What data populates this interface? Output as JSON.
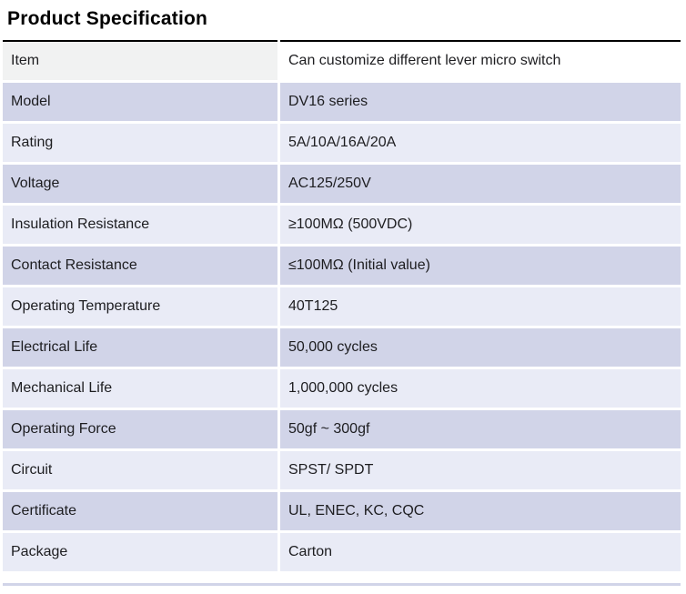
{
  "page": {
    "title": "Product Specification"
  },
  "spec_table": {
    "header_row": {
      "label": "Item",
      "value": "Can customize different lever micro switch"
    },
    "rows": [
      {
        "label": "Model",
        "value": "DV16 series"
      },
      {
        "label": "Rating",
        "value": "5A/10A/16A/20A"
      },
      {
        "label": "Voltage",
        "value": "AC125/250V"
      },
      {
        "label": "Insulation Resistance",
        "value": "≥100MΩ (500VDC)"
      },
      {
        "label": "Contact Resistance",
        "value": "≤100MΩ (Initial value)"
      },
      {
        "label": "Operating Temperature",
        "value": "40T125"
      },
      {
        "label": "Electrical Life",
        "value": "50,000 cycles"
      },
      {
        "label": "Mechanical Life",
        "value": "1,000,000 cycles"
      },
      {
        "label": "Operating Force",
        "value": "50gf ~ 300gf"
      },
      {
        "label": "Circuit",
        "value": "SPST/ SPDT"
      },
      {
        "label": "Certificate",
        "value": "UL, ENEC, KC, CQC"
      },
      {
        "label": "Package",
        "value": "Carton"
      }
    ]
  },
  "colors": {
    "header_label_bg": "#f1f2f2",
    "header_value_bg": "#ffffff",
    "row_lavender_bg": "#d1d4e8",
    "row_light_bg": "#e9ebf6",
    "top_rule": "#000000",
    "text": "#1d1d20"
  },
  "layout_values": {
    "label_column_width_px": "302"
  }
}
